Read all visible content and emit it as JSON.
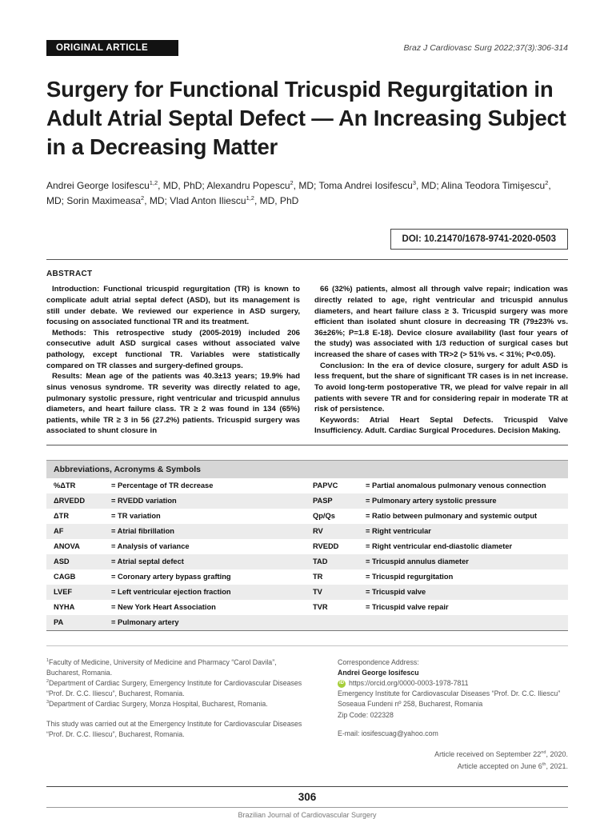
{
  "header": {
    "article_type": "ORIGINAL ARTICLE",
    "journal_ref": "Braz J Cardiovasc Surg 2022;37(3):306-314"
  },
  "title": "Surgery for Functional Tricuspid Regurgitation in Adult Atrial Septal Defect — An Increasing Subject in a Decreasing Matter",
  "authors": [
    {
      "name": "Andrei George Iosifescu",
      "sup": "1,2",
      "after": ", MD, PhD; "
    },
    {
      "name": "Alexandru Popescu",
      "sup": "2",
      "after": ", MD; "
    },
    {
      "name": "Toma Andrei Iosifescu",
      "sup": "3",
      "after": ", MD; "
    },
    {
      "name": "Alina Teodora Timişescu",
      "sup": "2",
      "after": ", MD; "
    },
    {
      "name": "Sorin Maximeasa",
      "sup": "2",
      "after": ", MD; "
    },
    {
      "name": "Vlad Anton Iliescu",
      "sup": "1,2",
      "after": ", MD, PhD"
    }
  ],
  "doi": "DOI: 10.21470/1678-9741-2020-0503",
  "abstract": {
    "heading": "ABSTRACT",
    "left_paragraphs": [
      "Introduction: Functional tricuspid regurgitation (TR) is known to complicate adult atrial septal defect (ASD), but its management is still under debate. We reviewed our experience in ASD surgery, focusing on associated functional TR and its treatment.",
      "Methods: This retrospective study (2005-2019) included 206 consecutive adult ASD surgical cases without associated valve pathology, except functional TR. Variables were statistically compared on TR classes and surgery-defined groups.",
      "Results: Mean age of the patients was 40.3±13 years; 19.9% had sinus venosus syndrome. TR severity was directly related to age, pulmonary systolic pressure, right ventricular and tricuspid annulus diameters, and heart failure class. TR ≥ 2 was found in 134 (65%) patients, while TR ≥ 3 in 56 (27.2%) patients. Tricuspid surgery was associated to shunt closure in"
    ],
    "right_paragraphs": [
      "66 (32%) patients, almost all through valve repair; indication was directly related to age, right ventricular and tricuspid annulus diameters, and heart failure class ≥ 3. Tricuspid surgery was more efficient than isolated shunt closure in decreasing TR (79±23% vs. 36±26%; P=1.8 E-18). Device closure availability (last four years of the study) was associated with 1/3 reduction of surgical cases but increased the share of cases with TR>2 (> 51% vs. < 31%; P<0.05).",
      "Conclusion: In the era of device closure, surgery for adult ASD is less frequent, but the share of significant TR cases is in net increase. To avoid long-term postoperative TR, we plead for valve repair in all patients with severe TR and for considering repair in moderate TR at risk of persistence.",
      "Keywords: Atrial Heart Septal Defects. Tricuspid Valve Insufficiency. Adult. Cardiac Surgical Procedures. Decision Making."
    ]
  },
  "abbreviations": {
    "title": "Abbreviations, Acronyms & Symbols",
    "rows": [
      {
        "l_abbr": "%ΔTR",
        "l_def": "= Percentage of TR decrease",
        "r_abbr": "PAPVC",
        "r_def": "= Partial anomalous pulmonary venous connection"
      },
      {
        "l_abbr": "ΔRVEDD",
        "l_def": "= RVEDD variation",
        "r_abbr": "PASP",
        "r_def": "= Pulmonary artery systolic pressure"
      },
      {
        "l_abbr": "ΔTR",
        "l_def": "= TR variation",
        "r_abbr": "Qp/Qs",
        "r_def": "= Ratio between pulmonary and systemic output"
      },
      {
        "l_abbr": "AF",
        "l_def": "= Atrial fibrillation",
        "r_abbr": "RV",
        "r_def": "= Right ventricular"
      },
      {
        "l_abbr": "ANOVA",
        "l_def": "= Analysis of variance",
        "r_abbr": "RVEDD",
        "r_def": "= Right ventricular end-diastolic diameter"
      },
      {
        "l_abbr": "ASD",
        "l_def": "= Atrial septal defect",
        "r_abbr": "TAD",
        "r_def": "= Tricuspid annulus diameter"
      },
      {
        "l_abbr": "CAGB",
        "l_def": "= Coronary artery bypass grafting",
        "r_abbr": "TR",
        "r_def": "= Tricuspid regurgitation"
      },
      {
        "l_abbr": "LVEF",
        "l_def": "= Left ventricular ejection fraction",
        "r_abbr": "TV",
        "r_def": "= Tricuspid valve"
      },
      {
        "l_abbr": "NYHA",
        "l_def": "= New York Heart Association",
        "r_abbr": "TVR",
        "r_def": "= Tricuspid valve repair"
      },
      {
        "l_abbr": "PA",
        "l_def": "= Pulmonary artery",
        "r_abbr": "",
        "r_def": ""
      }
    ]
  },
  "footnotes": {
    "affiliations": [
      {
        "sup": "1",
        "text": "Faculty of Medicine, University of Medicine and Pharmacy “Carol Davila”, Bucharest, Romania."
      },
      {
        "sup": "2",
        "text": "Department of Cardiac Surgery, Emergency Institute for Cardiovascular Diseases “Prof. Dr. C.C. Iliescu”, Bucharest, Romania."
      },
      {
        "sup": "3",
        "text": "Department of Cardiac Surgery, Monza Hospital, Bucharest, Romania."
      }
    ],
    "study_note": "This study was carried out at the Emergency Institute for Cardiovascular Diseases “Prof. Dr. C.C. Iliescu”, Bucharest, Romania."
  },
  "correspondence": {
    "label": "Correspondence Address:",
    "name": "Andrei George Iosifescu",
    "orcid": "https://orcid.org/0000-0003-1978-7811",
    "lines": [
      "Emergency Institute for Cardiovascular Diseases “Prof. Dr. C.C. Iliescu”",
      "Soseaua Fundeni nº 258, Bucharest, Romania",
      "Zip Code: 022328"
    ],
    "email": "E-mail: iosifescuag@yahoo.com"
  },
  "dates": {
    "received_pre": "Article received on September 22",
    "received_sup": "nd",
    "received_post": ", 2020.",
    "accepted_pre": "Article accepted on June 6",
    "accepted_sup": "th",
    "accepted_post": ", 2021."
  },
  "footer": {
    "page_number": "306",
    "journal_name": "Brazilian Journal of Cardiovascular Surgery"
  }
}
